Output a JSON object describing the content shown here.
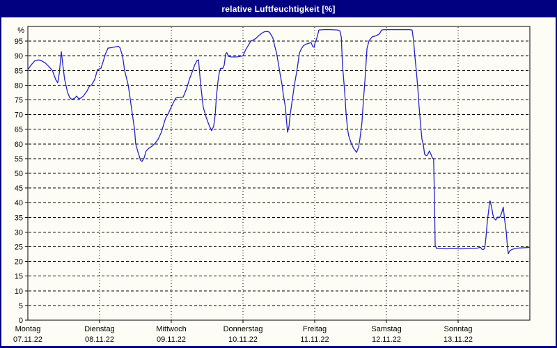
{
  "window": {
    "title": "relative Luftfeuchtigkeit [%]"
  },
  "colors": {
    "title_bar": "#000080",
    "title_text": "#ffffff",
    "window_border": "#000080",
    "panel_background": "#fdfdf5",
    "axis": "#000000",
    "grid": "#000000",
    "line": "#2222cc"
  },
  "chart_data": {
    "type": "line",
    "title": "relative Luftfeuchtigkeit [%]",
    "ylabel": "%",
    "xlabel": "",
    "ylim": [
      0,
      100
    ],
    "ytick_interval": 5,
    "ytick_label_max": 95,
    "xlim": [
      0,
      168
    ],
    "x_unit": "hours from Montag 00:00 to Sonntag 24:00",
    "grid": true,
    "legend": "none",
    "days": [
      {
        "label": "Montag",
        "date": "07.11.22"
      },
      {
        "label": "Dienstag",
        "date": "08.11.22"
      },
      {
        "label": "Mittwoch",
        "date": "09.11.22"
      },
      {
        "label": "Donnerstag",
        "date": "10.11.22"
      },
      {
        "label": "Freitag",
        "date": "11.11.22"
      },
      {
        "label": "Samstag",
        "date": "12.11.22"
      },
      {
        "label": "Sonntag",
        "date": "13.11.22"
      }
    ],
    "series": [
      {
        "name": "relative Luftfeuchtigkeit",
        "color": "#2222cc",
        "points": [
          [
            0,
            85.3
          ],
          [
            1.2,
            87
          ],
          [
            2.3,
            88.3
          ],
          [
            3.5,
            88.6
          ],
          [
            4.2,
            88.5
          ],
          [
            5.8,
            87.6
          ],
          [
            7,
            86.4
          ],
          [
            8.2,
            85
          ],
          [
            9.3,
            82
          ],
          [
            10,
            80.8
          ],
          [
            10.5,
            84
          ],
          [
            11.2,
            91.4
          ],
          [
            11.7,
            87
          ],
          [
            12.3,
            82
          ],
          [
            13.3,
            77.5
          ],
          [
            14,
            75.8
          ],
          [
            14.7,
            75.2
          ],
          [
            15.6,
            75.5
          ],
          [
            16.3,
            76.3
          ],
          [
            17,
            75.4
          ],
          [
            17.7,
            75.6
          ],
          [
            18.6,
            76.3
          ],
          [
            19.8,
            78
          ],
          [
            20.5,
            79.5
          ],
          [
            21.4,
            80.2
          ],
          [
            22.4,
            82
          ],
          [
            23.3,
            85.3
          ],
          [
            24,
            85.6
          ],
          [
            24.5,
            85.8
          ],
          [
            25.2,
            88
          ],
          [
            25.9,
            90.5
          ],
          [
            26.8,
            92.6
          ],
          [
            28,
            92.8
          ],
          [
            29.1,
            93
          ],
          [
            30.3,
            93.2
          ],
          [
            30.8,
            92.8
          ],
          [
            31.7,
            90
          ],
          [
            32.4,
            85
          ],
          [
            33.6,
            80
          ],
          [
            34.3,
            75
          ],
          [
            35,
            70
          ],
          [
            35.7,
            65
          ],
          [
            36.1,
            60
          ],
          [
            37,
            56.7
          ],
          [
            37.7,
            54.5
          ],
          [
            38.2,
            54
          ],
          [
            38.9,
            55.2
          ],
          [
            39.6,
            57.6
          ],
          [
            40.5,
            58.5
          ],
          [
            41.5,
            59.2
          ],
          [
            42.4,
            60
          ],
          [
            43.6,
            61.6
          ],
          [
            44.7,
            64
          ],
          [
            45.4,
            66.4
          ],
          [
            46.1,
            68.8
          ],
          [
            47.1,
            70.5
          ],
          [
            48,
            72.6
          ],
          [
            48.9,
            74.5
          ],
          [
            49.6,
            75.7
          ],
          [
            50.8,
            75.8
          ],
          [
            52,
            76
          ],
          [
            53.1,
            78.8
          ],
          [
            54.1,
            82.1
          ],
          [
            55,
            84.5
          ],
          [
            55.9,
            87
          ],
          [
            56.6,
            88.4
          ],
          [
            57.1,
            88.6
          ],
          [
            57.8,
            80.4
          ],
          [
            58.7,
            72.5
          ],
          [
            59.7,
            69
          ],
          [
            60.6,
            66.5
          ],
          [
            61.5,
            64.5
          ],
          [
            62.2,
            66
          ],
          [
            62.7,
            70
          ],
          [
            63.1,
            76
          ],
          [
            63.6,
            81
          ],
          [
            64.1,
            84.5
          ],
          [
            64.5,
            85.7
          ],
          [
            65.2,
            85.7
          ],
          [
            65.7,
            86.8
          ],
          [
            66.2,
            90.7
          ],
          [
            66.6,
            91.1
          ],
          [
            67.1,
            89.8
          ],
          [
            68,
            89.6
          ],
          [
            69.9,
            89.6
          ],
          [
            71.1,
            89.8
          ],
          [
            72,
            90
          ],
          [
            72.9,
            92.1
          ],
          [
            73.9,
            93.8
          ],
          [
            74.6,
            95
          ],
          [
            75.5,
            95.4
          ],
          [
            76.4,
            96
          ],
          [
            77.4,
            97
          ],
          [
            78.3,
            97.7
          ],
          [
            79.2,
            98.2
          ],
          [
            80.2,
            98.3
          ],
          [
            80.9,
            98
          ],
          [
            82,
            96.1
          ],
          [
            82.7,
            93
          ],
          [
            83.2,
            91.1
          ],
          [
            83.9,
            87
          ],
          [
            84.4,
            83.9
          ],
          [
            85.1,
            80
          ],
          [
            85.5,
            76.8
          ],
          [
            86.2,
            72.5
          ],
          [
            86.9,
            64
          ],
          [
            87.4,
            66
          ],
          [
            87.8,
            70
          ],
          [
            88.5,
            75
          ],
          [
            89.2,
            80
          ],
          [
            89.7,
            83
          ],
          [
            90.2,
            86
          ],
          [
            90.9,
            91
          ],
          [
            91.6,
            92.5
          ],
          [
            92.3,
            93.5
          ],
          [
            93.2,
            94
          ],
          [
            94.1,
            94.3
          ],
          [
            94.8,
            94.5
          ],
          [
            95.3,
            93.2
          ],
          [
            95.8,
            92.9
          ],
          [
            96,
            94
          ],
          [
            96.7,
            96
          ],
          [
            97.4,
            98.8
          ],
          [
            99,
            98.9
          ],
          [
            101.4,
            98.9
          ],
          [
            103.7,
            98.8
          ],
          [
            104.4,
            98.5
          ],
          [
            104.9,
            96.4
          ],
          [
            105.3,
            86.9
          ],
          [
            106,
            78.2
          ],
          [
            106.5,
            70.2
          ],
          [
            107,
            65
          ],
          [
            107.4,
            62.7
          ],
          [
            108.3,
            60
          ],
          [
            109,
            58.5
          ],
          [
            110,
            57.1
          ],
          [
            110.7,
            59
          ],
          [
            111.1,
            61.5
          ],
          [
            111.8,
            67.1
          ],
          [
            112.3,
            75
          ],
          [
            112.8,
            81.4
          ],
          [
            113.5,
            92.5
          ],
          [
            114.2,
            95.2
          ],
          [
            115.3,
            96.5
          ],
          [
            116.5,
            96.8
          ],
          [
            117.7,
            97.5
          ],
          [
            118.4,
            98.8
          ],
          [
            119.3,
            98.9
          ],
          [
            120,
            98.9
          ],
          [
            121.2,
            98.9
          ],
          [
            123.5,
            98.9
          ],
          [
            125.8,
            98.9
          ],
          [
            127.7,
            98.9
          ],
          [
            128.6,
            98.8
          ],
          [
            129.1,
            95
          ],
          [
            129.5,
            90
          ],
          [
            130,
            85
          ],
          [
            130.5,
            79
          ],
          [
            130.9,
            73
          ],
          [
            131.4,
            67
          ],
          [
            131.9,
            61.5
          ],
          [
            132.3,
            60
          ],
          [
            132.8,
            56.5
          ],
          [
            133.3,
            56
          ],
          [
            133.7,
            56.2
          ],
          [
            134.4,
            57.6
          ],
          [
            134.9,
            56.5
          ],
          [
            135.4,
            55.2
          ],
          [
            135.8,
            55
          ],
          [
            136.1,
            40
          ],
          [
            136.3,
            25.5
          ],
          [
            136.8,
            24.4
          ],
          [
            137.5,
            24.4
          ],
          [
            139.8,
            24.3
          ],
          [
            142.1,
            24.4
          ],
          [
            144,
            24.3
          ],
          [
            145.6,
            24.3
          ],
          [
            148,
            24.4
          ],
          [
            150.3,
            24.5
          ],
          [
            151.5,
            24.8
          ],
          [
            151.9,
            24.2
          ],
          [
            152.4,
            24
          ],
          [
            152.9,
            24.5
          ],
          [
            153.3,
            28
          ],
          [
            153.8,
            34
          ],
          [
            154.3,
            38
          ],
          [
            154.5,
            40.3
          ],
          [
            154.7,
            40.6
          ],
          [
            155.2,
            38.5
          ],
          [
            155.6,
            36
          ],
          [
            156.1,
            34.5
          ],
          [
            156.6,
            34.1
          ],
          [
            157.3,
            35.2
          ],
          [
            157.7,
            34.8
          ],
          [
            158.2,
            35.5
          ],
          [
            158.7,
            37
          ],
          [
            159.1,
            38.5
          ],
          [
            159.6,
            34
          ],
          [
            160.1,
            30.1
          ],
          [
            160.5,
            25
          ],
          [
            160.8,
            22.6
          ],
          [
            161.2,
            23.5
          ],
          [
            161.9,
            24
          ],
          [
            162.4,
            24.2
          ],
          [
            163.6,
            24.5
          ],
          [
            165,
            24.6
          ],
          [
            166.6,
            24.7
          ],
          [
            168,
            24.8
          ]
        ]
      }
    ]
  }
}
